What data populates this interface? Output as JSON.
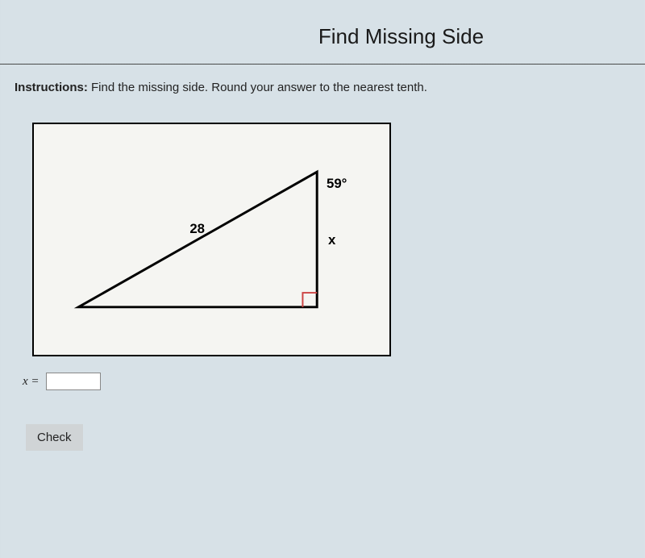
{
  "header": {
    "title": "Find Missing Side"
  },
  "instructions": {
    "label": "Instructions:",
    "text": " Find the missing side. Round your answer to the nearest tenth."
  },
  "figure": {
    "type": "triangle",
    "labels": {
      "hypotenuse": "28",
      "angle": "59°",
      "side": "x"
    },
    "points": {
      "a": [
        55,
        230
      ],
      "b": [
        355,
        60
      ],
      "c": [
        355,
        230
      ]
    },
    "right_angle_at": "c",
    "stroke_color": "#000000",
    "stroke_width": 3,
    "background": "#f5f5f2",
    "right_angle_color": "#cc4444",
    "label_fontsize": 17,
    "label_weight": "bold"
  },
  "answer": {
    "label": "x =",
    "value": ""
  },
  "buttons": {
    "check": "Check"
  }
}
